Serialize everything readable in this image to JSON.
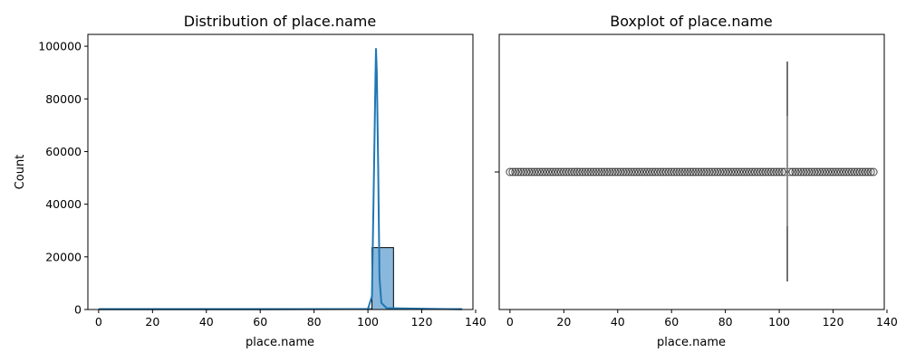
{
  "chart_data": [
    {
      "type": "histogram",
      "title": "Distribution of place.name",
      "xlabel": "place.name",
      "ylabel": "Count",
      "xlim": [
        -4,
        139
      ],
      "ylim": [
        0,
        104500
      ],
      "xticks": [
        0,
        20,
        40,
        60,
        80,
        100,
        120,
        140
      ],
      "yticks": [
        0,
        20000,
        40000,
        60000,
        80000,
        100000
      ],
      "bins": [
        {
          "x0": 101.5,
          "x1": 109.5,
          "count": 23500
        }
      ],
      "baseline": {
        "x0": 0,
        "x1": 135,
        "count": 0
      },
      "kde": {
        "x": [
          0,
          60,
          100,
          101.5,
          102.3,
          102.8,
          103.0,
          103.3,
          103.8,
          104.3,
          105,
          107,
          135
        ],
        "y": [
          100,
          100,
          200,
          5000,
          55000,
          88000,
          99000,
          90000,
          55000,
          12000,
          2500,
          500,
          100
        ]
      },
      "color": "#1f77b4",
      "bar_fill": "#8ab8dc",
      "grid": false
    },
    {
      "type": "boxplot",
      "title": "Boxplot of place.name",
      "xlabel": "place.name",
      "ylabel": "",
      "xlim": [
        -4,
        139
      ],
      "xticks": [
        0,
        20,
        40,
        60,
        80,
        100,
        120,
        140
      ],
      "box": {
        "q1": 103,
        "median": 103,
        "q3": 103,
        "whisker_low": 103,
        "whisker_high": 103
      },
      "outliers": [
        0,
        1,
        2,
        3,
        4,
        5,
        6,
        7,
        8,
        9,
        10,
        11,
        12,
        13,
        14,
        15,
        16,
        17,
        18,
        19,
        20,
        21,
        22,
        23,
        24,
        25,
        26,
        27,
        28,
        29,
        30,
        31,
        32,
        33,
        34,
        35,
        36,
        37,
        38,
        39,
        40,
        41,
        42,
        43,
        44,
        45,
        46,
        47,
        48,
        49,
        50,
        51,
        52,
        53,
        54,
        55,
        56,
        57,
        58,
        59,
        60,
        61,
        62,
        63,
        64,
        65,
        66,
        67,
        68,
        69,
        70,
        71,
        72,
        73,
        74,
        75,
        76,
        77,
        78,
        79,
        80,
        81,
        82,
        83,
        84,
        85,
        86,
        87,
        88,
        89,
        90,
        91,
        92,
        93,
        94,
        95,
        96,
        97,
        98,
        99,
        100,
        101,
        102,
        104,
        105,
        106,
        107,
        108,
        109,
        110,
        111,
        112,
        113,
        114,
        115,
        116,
        117,
        118,
        119,
        120,
        121,
        122,
        123,
        124,
        125,
        126,
        127,
        128,
        129,
        130,
        131,
        132,
        133,
        134,
        135
      ],
      "color": "#444444",
      "grid": false
    }
  ]
}
